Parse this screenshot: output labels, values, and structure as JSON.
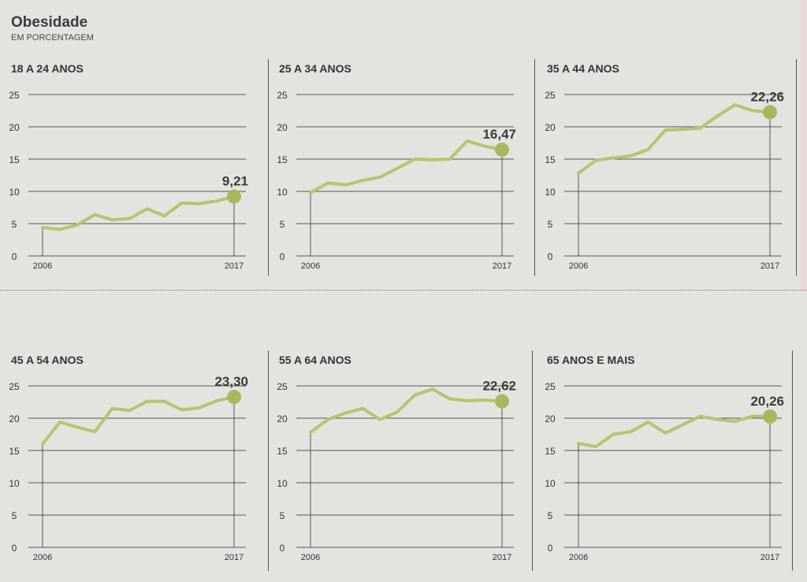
{
  "header": {
    "title": "Obesidade",
    "subtitle": "EM PORCENTAGEM"
  },
  "colors": {
    "line": "#b7c46e",
    "dot": "#a9b75c",
    "grid": "#555555",
    "background": "#e4e3e0"
  },
  "chart_data": [
    {
      "type": "line",
      "title": "18 A 24 ANOS",
      "x": [
        2006,
        2007,
        2008,
        2009,
        2010,
        2011,
        2012,
        2013,
        2014,
        2015,
        2016,
        2017
      ],
      "values": [
        4.4,
        4.1,
        4.8,
        6.4,
        5.6,
        5.8,
        7.3,
        6.2,
        8.2,
        8.1,
        8.5,
        9.21
      ],
      "final_label": "9,21",
      "ylim": [
        0,
        25
      ],
      "yticks": [
        "0",
        "5",
        "10",
        "15",
        "20",
        "25"
      ],
      "xticks": [
        "2006",
        "2017"
      ],
      "grid": true
    },
    {
      "type": "line",
      "title": "25 A 34 ANOS",
      "x": [
        2006,
        2007,
        2008,
        2009,
        2010,
        2011,
        2012,
        2013,
        2014,
        2015,
        2016,
        2017
      ],
      "values": [
        9.8,
        11.3,
        11.0,
        11.7,
        12.2,
        13.6,
        15.0,
        14.9,
        15.0,
        17.8,
        17.0,
        16.47
      ],
      "final_label": "16,47",
      "ylim": [
        0,
        25
      ],
      "yticks": [
        "0",
        "5",
        "10",
        "15",
        "20",
        "25"
      ],
      "xticks": [
        "2006",
        "2017"
      ],
      "grid": true
    },
    {
      "type": "line",
      "title": "35 A 44 ANOS",
      "x": [
        2006,
        2007,
        2008,
        2009,
        2010,
        2011,
        2012,
        2013,
        2014,
        2015,
        2016,
        2017
      ],
      "values": [
        12.8,
        14.8,
        15.2,
        15.5,
        16.5,
        19.5,
        19.6,
        19.8,
        21.7,
        23.4,
        22.5,
        22.26
      ],
      "final_label": "22,26",
      "ylim": [
        0,
        25
      ],
      "yticks": [
        "0",
        "5",
        "10",
        "15",
        "20",
        "25"
      ],
      "xticks": [
        "2006",
        "2017"
      ],
      "grid": true
    },
    {
      "type": "line",
      "title": "45 A 54 ANOS",
      "x": [
        2006,
        2007,
        2008,
        2009,
        2010,
        2011,
        2012,
        2013,
        2014,
        2015,
        2016,
        2017
      ],
      "values": [
        16.0,
        19.4,
        18.6,
        17.9,
        21.5,
        21.2,
        22.6,
        22.6,
        21.3,
        21.6,
        22.7,
        23.3
      ],
      "final_label": "23,30",
      "ylim": [
        0,
        25
      ],
      "yticks": [
        "0",
        "5",
        "10",
        "15",
        "20",
        "25"
      ],
      "xticks": [
        "2006",
        "2017"
      ],
      "grid": true
    },
    {
      "type": "line",
      "title": "55 A 64 ANOS",
      "x": [
        2006,
        2007,
        2008,
        2009,
        2010,
        2011,
        2012,
        2013,
        2014,
        2015,
        2016,
        2017
      ],
      "values": [
        17.8,
        19.8,
        20.8,
        21.5,
        19.8,
        21.0,
        23.6,
        24.5,
        23.0,
        22.7,
        22.8,
        22.62
      ],
      "final_label": "22,62",
      "ylim": [
        0,
        25
      ],
      "yticks": [
        "0",
        "5",
        "10",
        "15",
        "20",
        "25"
      ],
      "xticks": [
        "2006",
        "2017"
      ],
      "grid": true
    },
    {
      "type": "line",
      "title": "65 ANOS E MAIS",
      "x": [
        2006,
        2007,
        2008,
        2009,
        2010,
        2011,
        2012,
        2013,
        2014,
        2015,
        2016,
        2017
      ],
      "values": [
        16.1,
        15.6,
        17.5,
        17.9,
        19.4,
        17.7,
        19.0,
        20.3,
        19.8,
        19.5,
        20.3,
        20.26
      ],
      "final_label": "20,26",
      "ylim": [
        0,
        25
      ],
      "yticks": [
        "0",
        "5",
        "10",
        "15",
        "20",
        "25"
      ],
      "xticks": [
        "2006",
        "2017"
      ],
      "grid": true
    }
  ]
}
